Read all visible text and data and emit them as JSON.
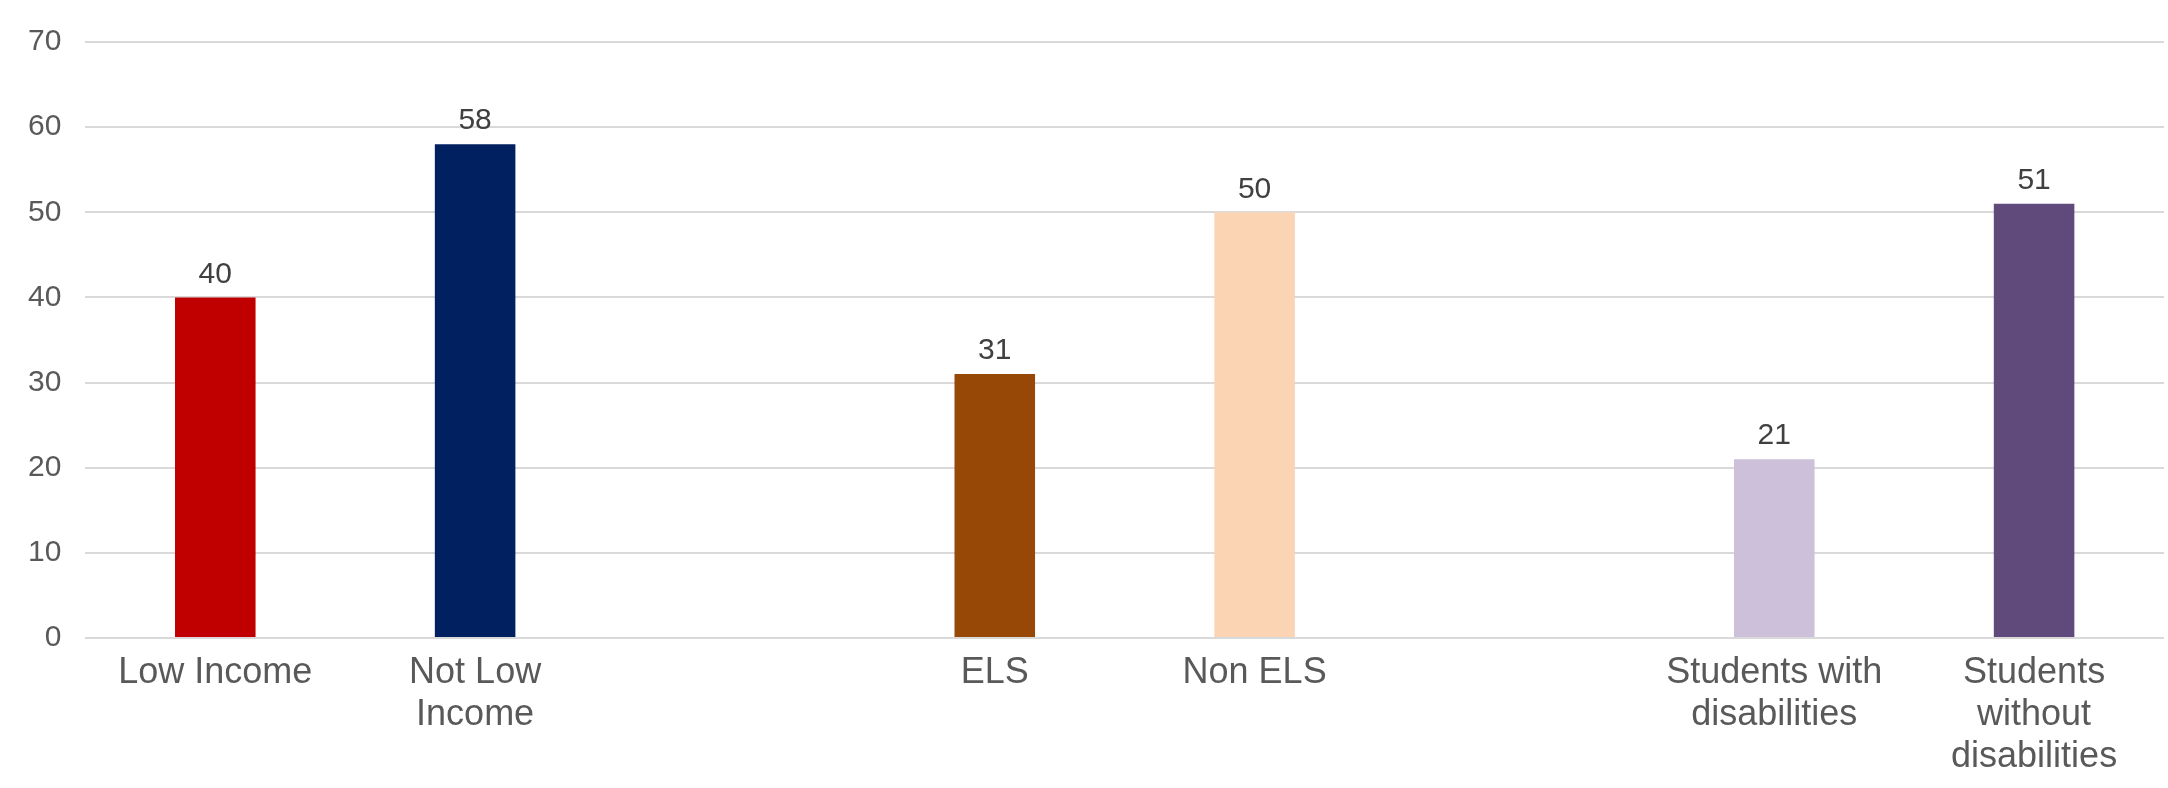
{
  "chart_data": {
    "type": "bar",
    "categories": [
      "Low Income",
      "Not Low Income",
      null,
      "ELS",
      "Non ELS",
      null,
      "Students with disabilities",
      "Students without disabilities"
    ],
    "values": [
      40,
      58,
      null,
      31,
      50,
      null,
      21,
      51
    ],
    "colors": [
      "#c00000",
      "#002060",
      null,
      "#974706",
      "#fbd4b4",
      null,
      "#ccc0da",
      "#604a7b"
    ],
    "ylim": [
      0,
      70
    ],
    "yticks": [
      0,
      10,
      20,
      30,
      40,
      50,
      60,
      70
    ],
    "grid": "y",
    "legend": false,
    "data_labels": true
  }
}
